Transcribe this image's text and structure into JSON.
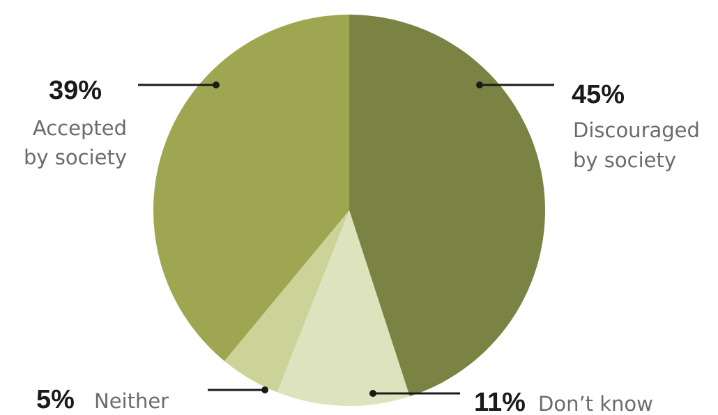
{
  "chart_data": {
    "type": "pie",
    "categories": [
      "Discouraged by society",
      "Don't know",
      "Neither",
      "Accepted by society"
    ],
    "values": [
      45,
      11,
      5,
      39
    ],
    "unit": "%",
    "colors": [
      "#7a8244",
      "#dde3bd",
      "#cbd398",
      "#9ea652"
    ],
    "labels": {
      "discouraged": {
        "pct": "45%",
        "line1": "Discouraged",
        "line2": "by society"
      },
      "dontknow": {
        "pct": "11%",
        "text": "Don’t know"
      },
      "neither": {
        "pct": "5%",
        "text": "Neither"
      },
      "accepted": {
        "pct": "39%",
        "line1": "Accepted",
        "line2": "by society"
      }
    }
  }
}
